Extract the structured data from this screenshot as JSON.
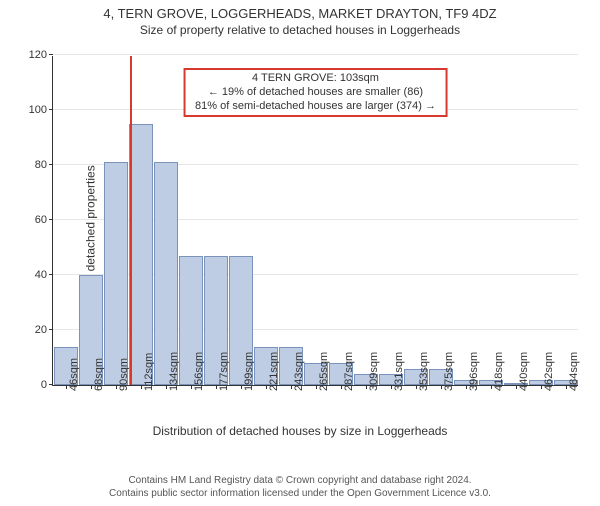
{
  "title": "4, TERN GROVE, LOGGERHEADS, MARKET DRAYTON, TF9 4DZ",
  "subtitle": "Size of property relative to detached houses in Loggerheads",
  "chart": {
    "type": "bar",
    "ylabel": "Number of detached properties",
    "xlabel": "Distribution of detached houses by size in Loggerheads",
    "ylim": [
      0,
      120
    ],
    "ytick_step": 20,
    "bar_fill": "#becde3",
    "bar_border": "#7a93bb",
    "grid_color": "#e6e6e6",
    "axis_color": "#333333",
    "background_color": "#ffffff",
    "categories": [
      "46sqm",
      "68sqm",
      "90sqm",
      "112sqm",
      "134sqm",
      "156sqm",
      "177sqm",
      "199sqm",
      "221sqm",
      "243sqm",
      "265sqm",
      "287sqm",
      "309sqm",
      "331sqm",
      "353sqm",
      "375sqm",
      "396sqm",
      "418sqm",
      "440sqm",
      "462sqm",
      "484sqm"
    ],
    "values": [
      14,
      40,
      81,
      95,
      81,
      47,
      47,
      47,
      14,
      14,
      8,
      8,
      4,
      4,
      6,
      6,
      2,
      2,
      0,
      2,
      2
    ],
    "marker_value_sqm": 103,
    "marker_color": "#d63a2f",
    "x_start": 46,
    "x_step": 22
  },
  "annotation": {
    "line1": "4 TERN GROVE: 103sqm",
    "line2": "← 19% of detached houses are smaller (86)",
    "line3": "81% of semi-detached houses are larger (374) →",
    "border_color": "#d63a2f",
    "background": "#ffffff",
    "fontsize": 11
  },
  "footer": {
    "line1": "Contains HM Land Registry data © Crown copyright and database right 2024.",
    "line2": "Contains public sector information licensed under the Open Government Licence v3.0.",
    "fontsize": 10,
    "color": "#555555"
  }
}
